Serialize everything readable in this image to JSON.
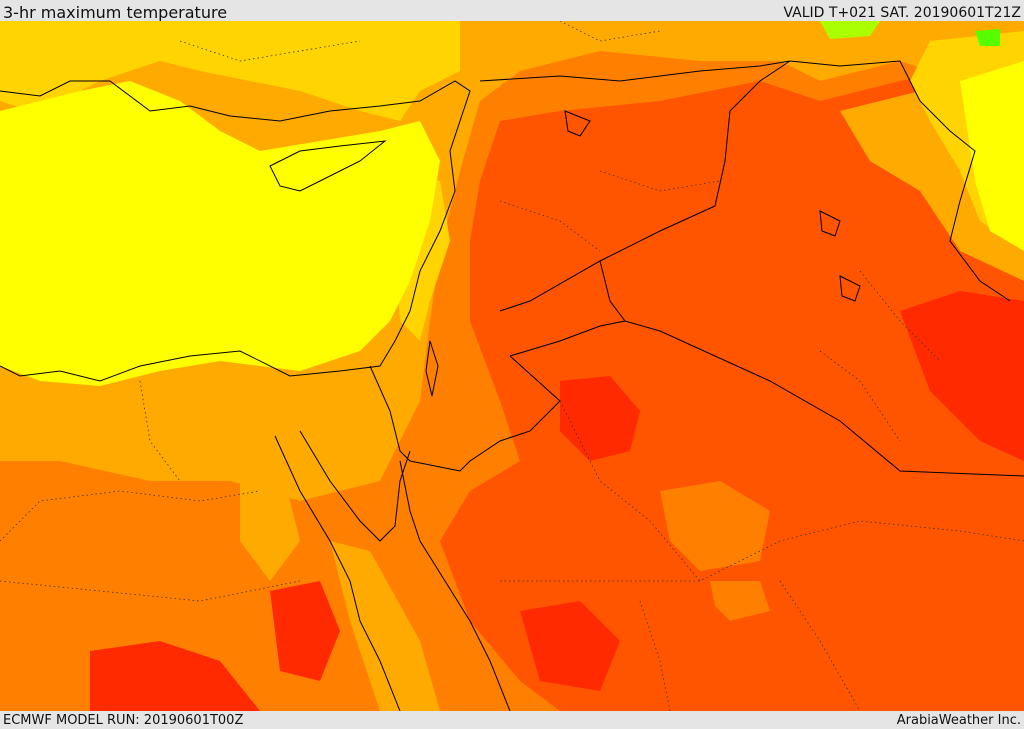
{
  "header": {
    "title": "3-hr maximum temperature",
    "valid": "VALID T+021 SAT. 20190601T21Z"
  },
  "footer": {
    "model_run": "ECMWF MODEL RUN: 20190601T00Z",
    "credit": "ArabiaWeather Inc."
  },
  "map": {
    "colors": {
      "hottest": "#ff2a00",
      "very_hot": "#ff5500",
      "hot": "#ff7f00",
      "warm": "#ffaa00",
      "mild": "#ffd400",
      "cool": "#ffff00",
      "cooler": "#aaff00",
      "coolest": "#55ff00"
    }
  }
}
